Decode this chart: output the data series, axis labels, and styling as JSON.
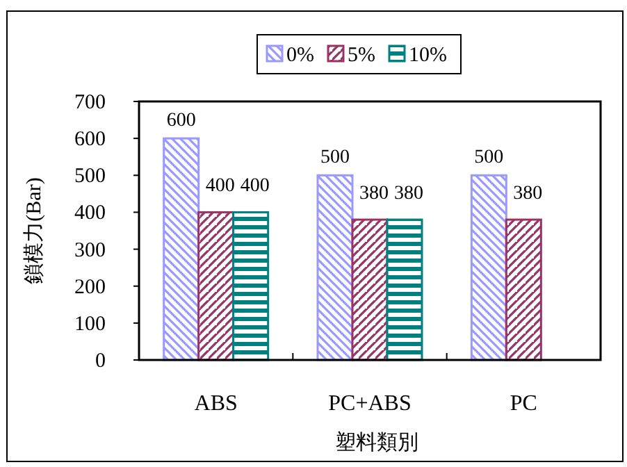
{
  "chart_data": {
    "type": "bar",
    "xlabel": "塑料類別",
    "ylabel": "鎖模力(Bar)",
    "categories": [
      "ABS",
      "PC+ABS",
      "PC"
    ],
    "series": [
      {
        "name": "0%",
        "color": "#9999ff",
        "values": [
          600,
          500,
          500
        ]
      },
      {
        "name": "5%",
        "color": "#993366",
        "values": [
          400,
          380,
          380
        ]
      },
      {
        "name": "10%",
        "color": "#008080",
        "values": [
          400,
          380,
          null
        ]
      }
    ],
    "ylim": [
      0,
      700
    ],
    "yticks": [
      0,
      100,
      200,
      300,
      400,
      500,
      600,
      700
    ],
    "data_labels": true,
    "legend": "top",
    "grid": false
  }
}
